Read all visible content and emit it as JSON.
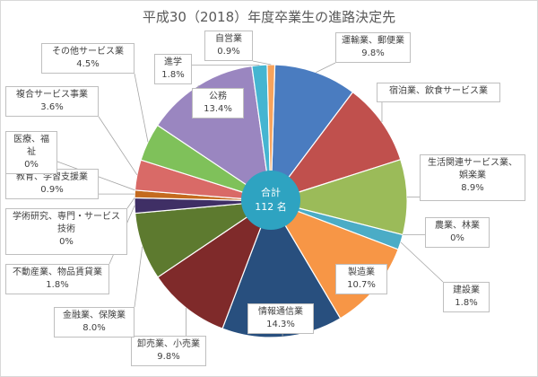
{
  "chart_data": {
    "type": "pie",
    "variant": "doughnut-with-center-label",
    "title": "平成30（2018）年度卒業生の進路決定先",
    "center": {
      "line1": "合計",
      "line2": "112 名"
    },
    "slices": [
      {
        "name": "運輸業、郵便業",
        "value": 9.8,
        "label": "9.8%",
        "color": "#4a7cc0"
      },
      {
        "name": "宿泊業、飲食サービス業",
        "value": 9.8,
        "label": "9.8%",
        "color": "#c0504d",
        "show_value": false
      },
      {
        "name": "生活関連サービス業、娯楽業",
        "value": 8.9,
        "label": "8.9%",
        "color": "#9bbb59"
      },
      {
        "name": "農業、林業",
        "value": 0,
        "label": "0%",
        "color": "#8064a2"
      },
      {
        "name": "建設業",
        "value": 1.8,
        "label": "1.8%",
        "color": "#4bacc6"
      },
      {
        "name": "製造業",
        "value": 10.7,
        "label": "10.7%",
        "color": "#f79646"
      },
      {
        "name": "情報通信業",
        "value": 14.3,
        "label": "14.3%",
        "color": "#284f7e"
      },
      {
        "name": "卸売業、小売業",
        "value": 9.8,
        "label": "9.8%",
        "color": "#7f2a2a"
      },
      {
        "name": "金融業、保険業",
        "value": 8.0,
        "label": "8.0%",
        "color": "#5d7a2f"
      },
      {
        "name": "不動産業、物品賃貸業",
        "value": 1.8,
        "label": "1.8%",
        "color": "#3f2f65"
      },
      {
        "name": "学術研究、専門・サービス技術",
        "value": 0,
        "label": "0%",
        "color": "#2e7d91"
      },
      {
        "name": "教育、学習支援業",
        "value": 0.9,
        "label": "0.9%",
        "color": "#c46a1e"
      },
      {
        "name": "医療、福祉",
        "value": 0,
        "label": "0%",
        "color": "#9ab0d6"
      },
      {
        "name": "複合サービス事業",
        "value": 3.6,
        "label": "3.6%",
        "color": "#d96a67"
      },
      {
        "name": "その他サービス業",
        "value": 4.5,
        "label": "4.5%",
        "color": "#7fc15a"
      },
      {
        "name": "公務",
        "value": 13.4,
        "label": "13.4%",
        "color": "#9a86c0"
      },
      {
        "name": "進学",
        "value": 1.8,
        "label": "1.8%",
        "color": "#45b5d1"
      },
      {
        "name": "自営業",
        "value": 0.9,
        "label": "0.9%",
        "color": "#f7a35c"
      }
    ]
  }
}
